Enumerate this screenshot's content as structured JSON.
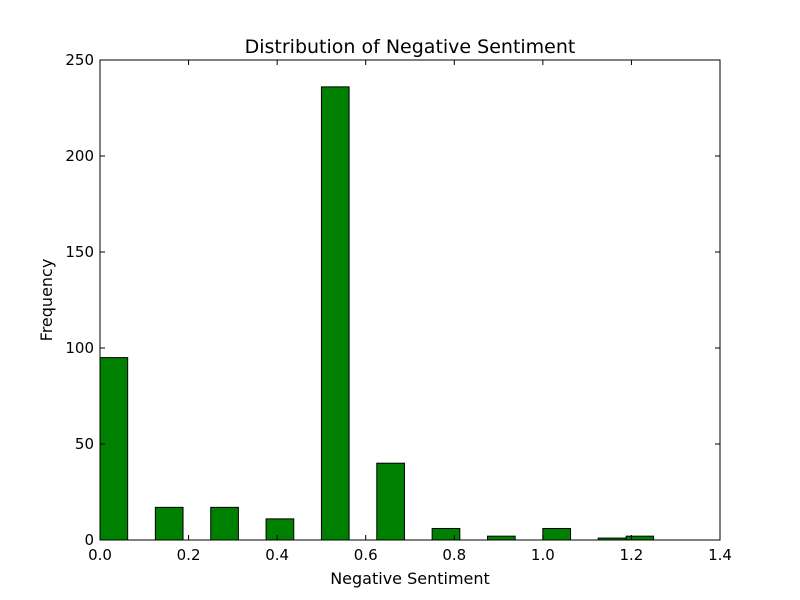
{
  "chart_data": {
    "type": "bar",
    "title": "Distribution of Negative Sentiment",
    "xlabel": "Negative Sentiment",
    "ylabel": "Frequency",
    "xlim": [
      0.0,
      1.4
    ],
    "ylim": [
      0,
      250
    ],
    "x_ticks": [
      "0.0",
      "0.2",
      "0.4",
      "0.6",
      "0.8",
      "1.0",
      "1.2",
      "1.4"
    ],
    "y_ticks": [
      "0",
      "50",
      "100",
      "150",
      "200",
      "250"
    ],
    "bar_color": "#008000",
    "bar_edge_color": "#000000",
    "bins": [
      {
        "x_start": 0.0,
        "x_end": 0.0625,
        "value": 95
      },
      {
        "x_start": 0.125,
        "x_end": 0.1875,
        "value": 17
      },
      {
        "x_start": 0.25,
        "x_end": 0.3125,
        "value": 17
      },
      {
        "x_start": 0.375,
        "x_end": 0.4375,
        "value": 11
      },
      {
        "x_start": 0.5,
        "x_end": 0.5625,
        "value": 236
      },
      {
        "x_start": 0.625,
        "x_end": 0.6875,
        "value": 40
      },
      {
        "x_start": 0.75,
        "x_end": 0.8125,
        "value": 6
      },
      {
        "x_start": 0.875,
        "x_end": 0.9375,
        "value": 2
      },
      {
        "x_start": 1.0,
        "x_end": 1.0625,
        "value": 6
      },
      {
        "x_start": 1.125,
        "x_end": 1.1875,
        "value": 1
      },
      {
        "x_start": 1.188,
        "x_end": 1.25,
        "value": 2
      }
    ],
    "grid": false
  }
}
